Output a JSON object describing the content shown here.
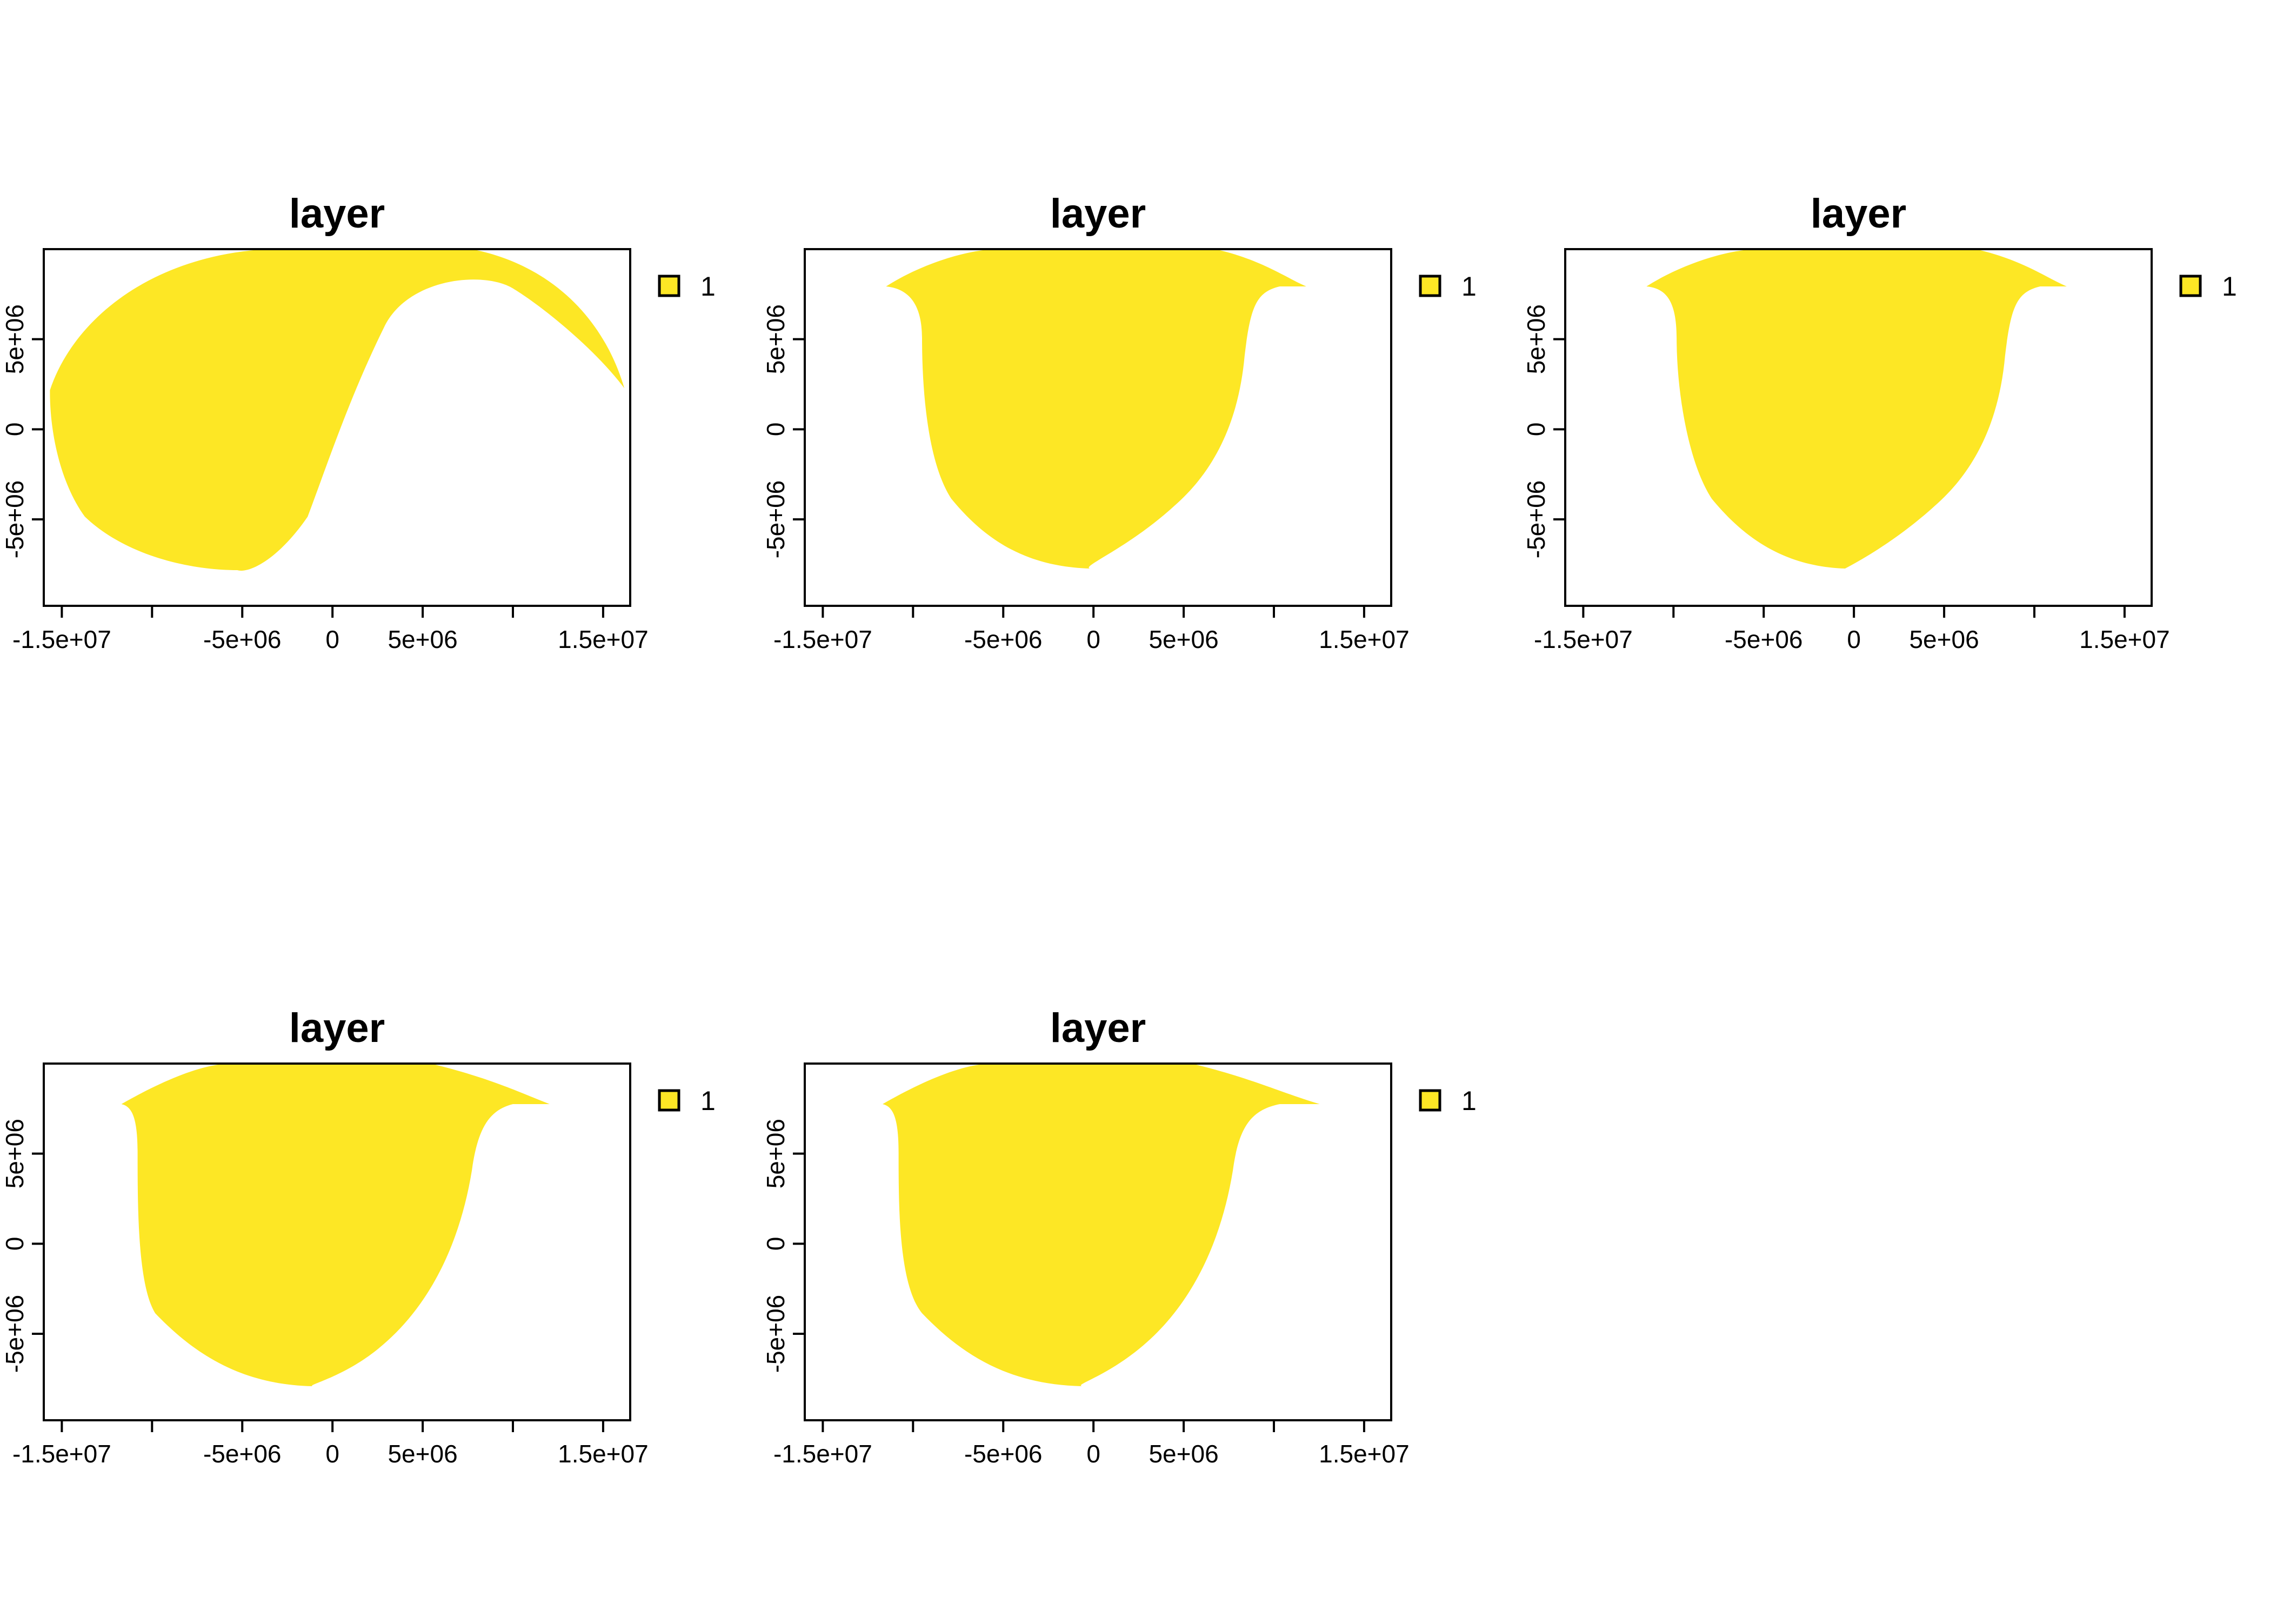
{
  "chart_data": [
    {
      "type": "map",
      "title": "layer",
      "xticks": [
        "-1.5e+07",
        "-5e+06",
        "0",
        "5e+06",
        "1.5e+07"
      ],
      "yticks": [
        "-5e+06",
        "0",
        "5e+06"
      ],
      "xlim": [
        -16000000,
        16500000
      ],
      "ylim": [
        -9800000,
        10000000
      ],
      "legend": [
        {
          "label": "1",
          "color": "#FDE725"
        }
      ],
      "legend_position": "right",
      "grid": false
    },
    {
      "type": "map",
      "title": "layer",
      "xticks": [
        "-1.5e+07",
        "-5e+06",
        "0",
        "5e+06",
        "1.5e+07"
      ],
      "yticks": [
        "-5e+06",
        "0",
        "5e+06"
      ],
      "xlim": [
        -16000000,
        16500000
      ],
      "ylim": [
        -9800000,
        10000000
      ],
      "legend": [
        {
          "label": "1",
          "color": "#FDE725"
        }
      ],
      "legend_position": "right",
      "grid": false
    },
    {
      "type": "map",
      "title": "layer",
      "xticks": [
        "-1.5e+07",
        "-5e+06",
        "0",
        "5e+06",
        "1.5e+07"
      ],
      "yticks": [
        "-5e+06",
        "0",
        "5e+06"
      ],
      "xlim": [
        -16000000,
        16500000
      ],
      "ylim": [
        -9800000,
        10000000
      ],
      "legend": [
        {
          "label": "1",
          "color": "#FDE725"
        }
      ],
      "legend_position": "right",
      "grid": false
    },
    {
      "type": "map",
      "title": "layer",
      "xticks": [
        "-1.5e+07",
        "-5e+06",
        "0",
        "5e+06",
        "1.5e+07"
      ],
      "yticks": [
        "-5e+06",
        "0",
        "5e+06"
      ],
      "xlim": [
        -16000000,
        16500000
      ],
      "ylim": [
        -9800000,
        10000000
      ],
      "legend": [
        {
          "label": "1",
          "color": "#FDE725"
        }
      ],
      "legend_position": "right",
      "grid": false
    },
    {
      "type": "map",
      "title": "layer",
      "xticks": [
        "-1.5e+07",
        "-5e+06",
        "0",
        "5e+06",
        "1.5e+07"
      ],
      "yticks": [
        "-5e+06",
        "0",
        "5e+06"
      ],
      "xlim": [
        -16000000,
        16500000
      ],
      "ylim": [
        -9800000,
        10000000
      ],
      "legend": [
        {
          "label": "1",
          "color": "#FDE725"
        }
      ],
      "legend_position": "right",
      "grid": false
    }
  ]
}
